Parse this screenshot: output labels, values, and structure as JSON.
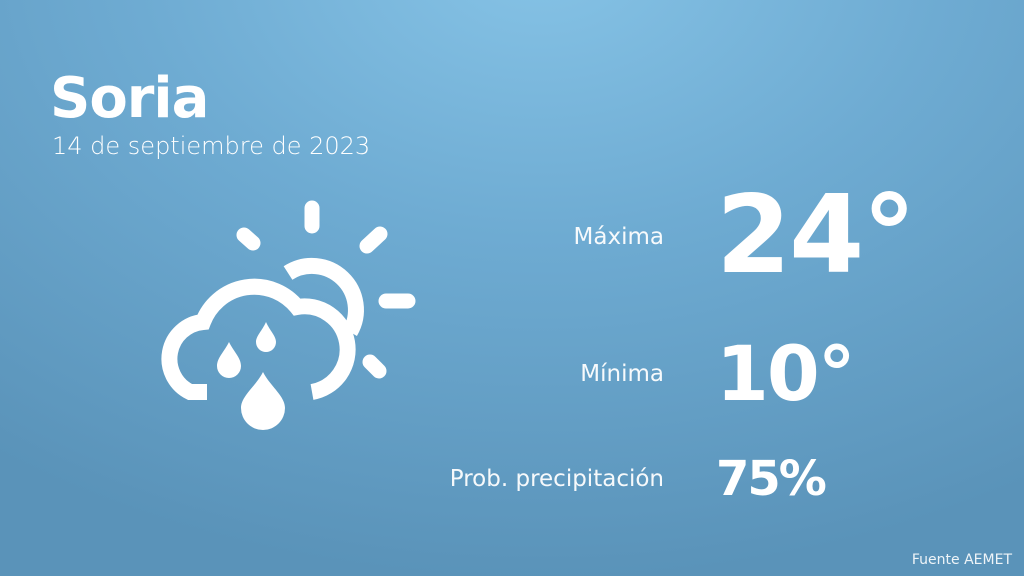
{
  "city": "Soria",
  "date": "14 de septiembre de 2023",
  "icon": "partly-cloudy-rain-icon",
  "stats": [
    {
      "label": "Máxima",
      "value": "24°"
    },
    {
      "label": "Mínima",
      "value": "10°"
    },
    {
      "label": "Prob. precipitación",
      "value": "75%"
    }
  ],
  "source": "Fuente AEMET"
}
